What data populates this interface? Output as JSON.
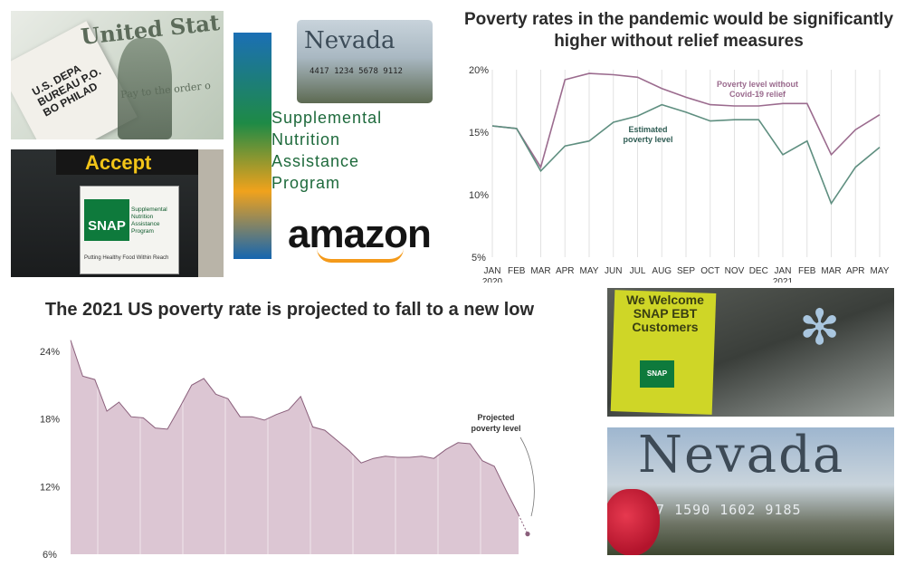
{
  "photos": {
    "check": {
      "title": "United Stat",
      "envelope": "U.S. DEPA BUREAU P.O. BO PHILAD",
      "payto": "Pay to the order o"
    },
    "accept": {
      "sign": "Accept",
      "snap": "SNAP",
      "snap_sub": "Supplemental Nutrition Assistance Program",
      "snap_foot": "Putting Healthy Food Within Reach"
    },
    "snap_ad": {
      "card_state": "Nevada",
      "card_number": "4417 1234 5678 9112",
      "words": [
        "Supplemental",
        "Nutrition",
        "Assistance",
        "Program"
      ],
      "brand": "amazon"
    },
    "welcome": {
      "sign": "We Welcome SNAP EBT Customers",
      "snap": "SNAP"
    },
    "nevada": {
      "card_state": "Nevada",
      "card_number": "77 1590 1602 9185"
    }
  },
  "chart_data": [
    {
      "type": "line",
      "title": "Poverty rates in the pandemic would be significantly higher without relief measures",
      "categories": [
        "JAN",
        "FEB",
        "MAR",
        "APR",
        "MAY",
        "JUN",
        "JUL",
        "AUG",
        "SEP",
        "OCT",
        "NOV",
        "DEC",
        "JAN",
        "FEB",
        "MAR",
        "APR",
        "MAY"
      ],
      "category_years": [
        "2020",
        "",
        "",
        "",
        "",
        "",
        "",
        "",
        "",
        "",
        "",
        "",
        "2021",
        "",
        "",
        "",
        ""
      ],
      "yticks": [
        "20%",
        "15%",
        "10%",
        "5%"
      ],
      "ylim": [
        5,
        20
      ],
      "series": [
        {
          "name": "Poverty level without Covid-19 relief",
          "color": "#9b6b8e",
          "values": [
            15.5,
            15.3,
            12.2,
            19.2,
            19.7,
            19.6,
            19.4,
            18.5,
            17.8,
            17.2,
            17.1,
            17.1,
            17.3,
            17.3,
            13.2,
            15.2,
            16.4
          ]
        },
        {
          "name": "Estimated poverty level",
          "color": "#5f8f80",
          "values": [
            15.5,
            15.3,
            11.9,
            13.9,
            14.3,
            15.8,
            16.3,
            17.2,
            16.6,
            15.9,
            16.0,
            16.0,
            13.2,
            14.3,
            9.3,
            12.2,
            13.8
          ]
        }
      ],
      "grid": "vertical"
    },
    {
      "type": "area",
      "title": "The 2021 US poverty rate is projected to fall to a new low",
      "yticks": [
        "24%",
        "18%",
        "12%",
        "6%"
      ],
      "ylim": [
        6,
        24
      ],
      "color": "#dcc6d3",
      "line_color": "#8a5f7b",
      "values": [
        25.0,
        21.8,
        21.5,
        18.7,
        19.5,
        18.2,
        18.1,
        17.2,
        17.1,
        19.0,
        21.0,
        21.6,
        20.2,
        19.8,
        18.2,
        18.2,
        17.9,
        18.4,
        18.8,
        20.0,
        17.3,
        17.0,
        16.1,
        15.2,
        14.1,
        14.5,
        14.7,
        14.6,
        14.6,
        14.7,
        14.5,
        15.3,
        15.9,
        15.8,
        14.3,
        13.8,
        11.6,
        9.5
      ],
      "projected": {
        "label": "Projected poverty level",
        "value": 7.8
      },
      "grid": "vertical"
    }
  ]
}
